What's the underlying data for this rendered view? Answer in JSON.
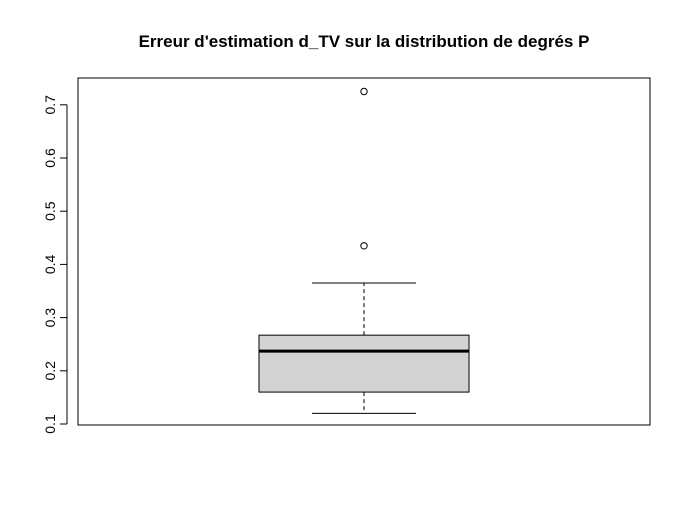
{
  "chart_data": {
    "type": "boxplot",
    "title": "Erreur d'estimation d_TV sur la distribution de degrés P",
    "xlabel": "",
    "ylabel": "",
    "ylim": [
      0.1,
      0.72
    ],
    "y_ticks": [
      "0.1",
      "0.2",
      "0.3",
      "0.4",
      "0.5",
      "0.6",
      "0.7"
    ],
    "grid": false,
    "box": {
      "whisker_low": 0.12,
      "q1": 0.16,
      "median": 0.237,
      "q3": 0.267,
      "whisker_high": 0.365,
      "outliers": [
        0.435,
        0.725
      ]
    },
    "colors": {
      "box_fill": "#d3d3d3",
      "stroke": "#000000"
    }
  }
}
